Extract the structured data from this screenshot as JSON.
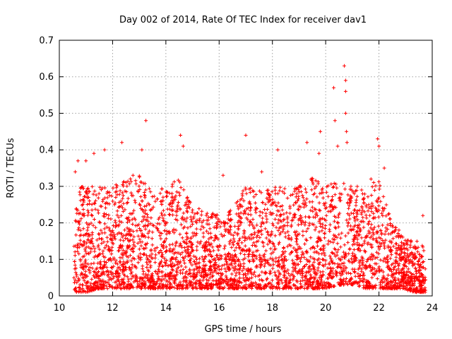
{
  "chart_data": {
    "type": "scatter",
    "title": "Day 002 of 2014, Rate Of TEC Index for receiver dav1",
    "xlabel": "GPS time / hours",
    "ylabel": "ROTI / TECUs",
    "xlim": [
      10,
      24
    ],
    "ylim": [
      0,
      0.7
    ],
    "xticks": [
      10,
      12,
      14,
      16,
      18,
      20,
      22,
      24
    ],
    "yticks": [
      0,
      0.1,
      0.2,
      0.3,
      0.4,
      0.5,
      0.6,
      0.7
    ],
    "ytick_labels": [
      "0",
      "0.1",
      "0.2",
      "0.3",
      "0.4",
      "0.5",
      "0.6",
      "0.7"
    ],
    "grid": true,
    "marker": "plus",
    "color": "#ff0000",
    "series": [
      {
        "name": "ROTI",
        "x_range": [
          10.55,
          23.75
        ],
        "notable_points": [
          {
            "x": 10.6,
            "y": 0.34
          },
          {
            "x": 10.7,
            "y": 0.37
          },
          {
            "x": 11.0,
            "y": 0.37
          },
          {
            "x": 11.3,
            "y": 0.39
          },
          {
            "x": 11.7,
            "y": 0.4
          },
          {
            "x": 12.35,
            "y": 0.42
          },
          {
            "x": 13.1,
            "y": 0.4
          },
          {
            "x": 13.25,
            "y": 0.48
          },
          {
            "x": 14.55,
            "y": 0.44
          },
          {
            "x": 14.65,
            "y": 0.41
          },
          {
            "x": 16.15,
            "y": 0.33
          },
          {
            "x": 17.0,
            "y": 0.44
          },
          {
            "x": 17.6,
            "y": 0.34
          },
          {
            "x": 18.2,
            "y": 0.4
          },
          {
            "x": 19.3,
            "y": 0.42
          },
          {
            "x": 19.75,
            "y": 0.39
          },
          {
            "x": 19.8,
            "y": 0.45
          },
          {
            "x": 20.3,
            "y": 0.57
          },
          {
            "x": 20.35,
            "y": 0.48
          },
          {
            "x": 20.45,
            "y": 0.41
          },
          {
            "x": 20.7,
            "y": 0.63
          },
          {
            "x": 20.75,
            "y": 0.59
          },
          {
            "x": 20.75,
            "y": 0.56
          },
          {
            "x": 20.75,
            "y": 0.5
          },
          {
            "x": 20.78,
            "y": 0.45
          },
          {
            "x": 20.8,
            "y": 0.42
          },
          {
            "x": 21.7,
            "y": 0.32
          },
          {
            "x": 21.95,
            "y": 0.43
          },
          {
            "x": 22.0,
            "y": 0.41
          },
          {
            "x": 22.2,
            "y": 0.35
          },
          {
            "x": 22.75,
            "y": 0.18
          },
          {
            "x": 23.65,
            "y": 0.22
          }
        ],
        "envelope": [
          {
            "x": 10.6,
            "lo": 0.01,
            "hi": 0.3
          },
          {
            "x": 11.0,
            "lo": 0.01,
            "hi": 0.3
          },
          {
            "x": 11.5,
            "lo": 0.02,
            "hi": 0.3
          },
          {
            "x": 12.0,
            "lo": 0.02,
            "hi": 0.3
          },
          {
            "x": 12.5,
            "lo": 0.02,
            "hi": 0.32
          },
          {
            "x": 13.0,
            "lo": 0.02,
            "hi": 0.34
          },
          {
            "x": 13.5,
            "lo": 0.02,
            "hi": 0.28
          },
          {
            "x": 14.0,
            "lo": 0.02,
            "hi": 0.3
          },
          {
            "x": 14.5,
            "lo": 0.02,
            "hi": 0.33
          },
          {
            "x": 15.0,
            "lo": 0.02,
            "hi": 0.25
          },
          {
            "x": 15.5,
            "lo": 0.02,
            "hi": 0.24
          },
          {
            "x": 16.0,
            "lo": 0.02,
            "hi": 0.22
          },
          {
            "x": 16.5,
            "lo": 0.02,
            "hi": 0.24
          },
          {
            "x": 17.0,
            "lo": 0.02,
            "hi": 0.3
          },
          {
            "x": 17.5,
            "lo": 0.02,
            "hi": 0.3
          },
          {
            "x": 18.0,
            "lo": 0.02,
            "hi": 0.3
          },
          {
            "x": 18.5,
            "lo": 0.02,
            "hi": 0.3
          },
          {
            "x": 19.0,
            "lo": 0.02,
            "hi": 0.3
          },
          {
            "x": 19.5,
            "lo": 0.02,
            "hi": 0.33
          },
          {
            "x": 20.0,
            "lo": 0.02,
            "hi": 0.3
          },
          {
            "x": 20.5,
            "lo": 0.03,
            "hi": 0.32
          },
          {
            "x": 21.0,
            "lo": 0.03,
            "hi": 0.3
          },
          {
            "x": 21.5,
            "lo": 0.02,
            "hi": 0.3
          },
          {
            "x": 22.0,
            "lo": 0.02,
            "hi": 0.32
          },
          {
            "x": 22.5,
            "lo": 0.02,
            "hi": 0.22
          },
          {
            "x": 22.9,
            "lo": 0.02,
            "hi": 0.16
          },
          {
            "x": 23.3,
            "lo": 0.01,
            "hi": 0.15
          },
          {
            "x": 23.75,
            "lo": 0.01,
            "hi": 0.15
          }
        ]
      }
    ]
  }
}
